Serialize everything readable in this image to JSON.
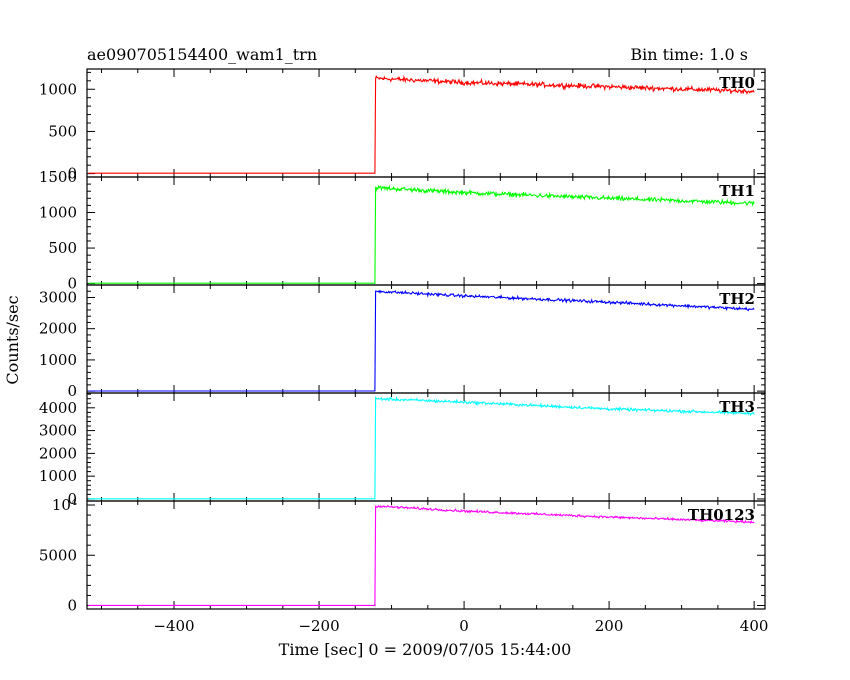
{
  "header": {
    "left_title": "ae090705154400_wam1_trn",
    "right_title": "Bin time: 1.0 s"
  },
  "axes": {
    "ylabel": "Counts/sec",
    "xlabel": "Time [sec] 0 = 2009/07/05 15:44:00"
  },
  "chart_data": {
    "type": "line",
    "x_range": [
      -520,
      415
    ],
    "x_ticks": [
      -400,
      -200,
      0,
      200,
      400
    ],
    "x_tick_labels": [
      "−400",
      "−200",
      "0",
      "200",
      "400"
    ],
    "trigger_time": -123,
    "panels": [
      {
        "name": "TH0",
        "color": "#ff0000",
        "ylim": [
          -40,
          1240
        ],
        "y_ticks": [
          0,
          500,
          1000
        ],
        "y_tick_labels": [
          "0",
          "500",
          "1000"
        ],
        "pre_level": 5,
        "post_points": [
          [
            -122,
            1130
          ],
          [
            0,
            1080
          ],
          [
            200,
            1030
          ],
          [
            400,
            975
          ]
        ],
        "noise": 28
      },
      {
        "name": "TH1",
        "color": "#00ff00",
        "ylim": [
          -20,
          1500
        ],
        "y_ticks": [
          0,
          500,
          1000,
          1500
        ],
        "y_tick_labels": [
          "0",
          "500",
          "1000",
          "1500"
        ],
        "pre_level": 5,
        "post_points": [
          [
            -122,
            1350
          ],
          [
            0,
            1280
          ],
          [
            200,
            1200
          ],
          [
            400,
            1130
          ]
        ],
        "noise": 30
      },
      {
        "name": "TH2",
        "color": "#0000ff",
        "ylim": [
          -60,
          3400
        ],
        "y_ticks": [
          0,
          1000,
          2000,
          3000
        ],
        "y_tick_labels": [
          "0",
          "1000",
          "2000",
          "3000"
        ],
        "pre_level": 5,
        "post_points": [
          [
            -122,
            3200
          ],
          [
            0,
            3050
          ],
          [
            200,
            2850
          ],
          [
            400,
            2620
          ]
        ],
        "noise": 45
      },
      {
        "name": "TH3",
        "color": "#00ffff",
        "ylim": [
          -90,
          4650
        ],
        "y_ticks": [
          0,
          1000,
          2000,
          3000,
          4000
        ],
        "y_tick_labels": [
          "0",
          "1000",
          "2000",
          "3000",
          "4000"
        ],
        "pre_level": 5,
        "post_points": [
          [
            -122,
            4400
          ],
          [
            0,
            4250
          ],
          [
            200,
            3950
          ],
          [
            400,
            3750
          ]
        ],
        "noise": 60
      },
      {
        "name": "TH0123",
        "color": "#ff00ff",
        "ylim": [
          -350,
          10400
        ],
        "y_ticks": [
          0,
          5000,
          10000
        ],
        "y_tick_labels": [
          "0",
          "5000",
          "10⁴"
        ],
        "pre_level": 5,
        "post_points": [
          [
            -122,
            9900
          ],
          [
            0,
            9400
          ],
          [
            200,
            8800
          ],
          [
            400,
            8300
          ]
        ],
        "noise": 110
      }
    ]
  }
}
